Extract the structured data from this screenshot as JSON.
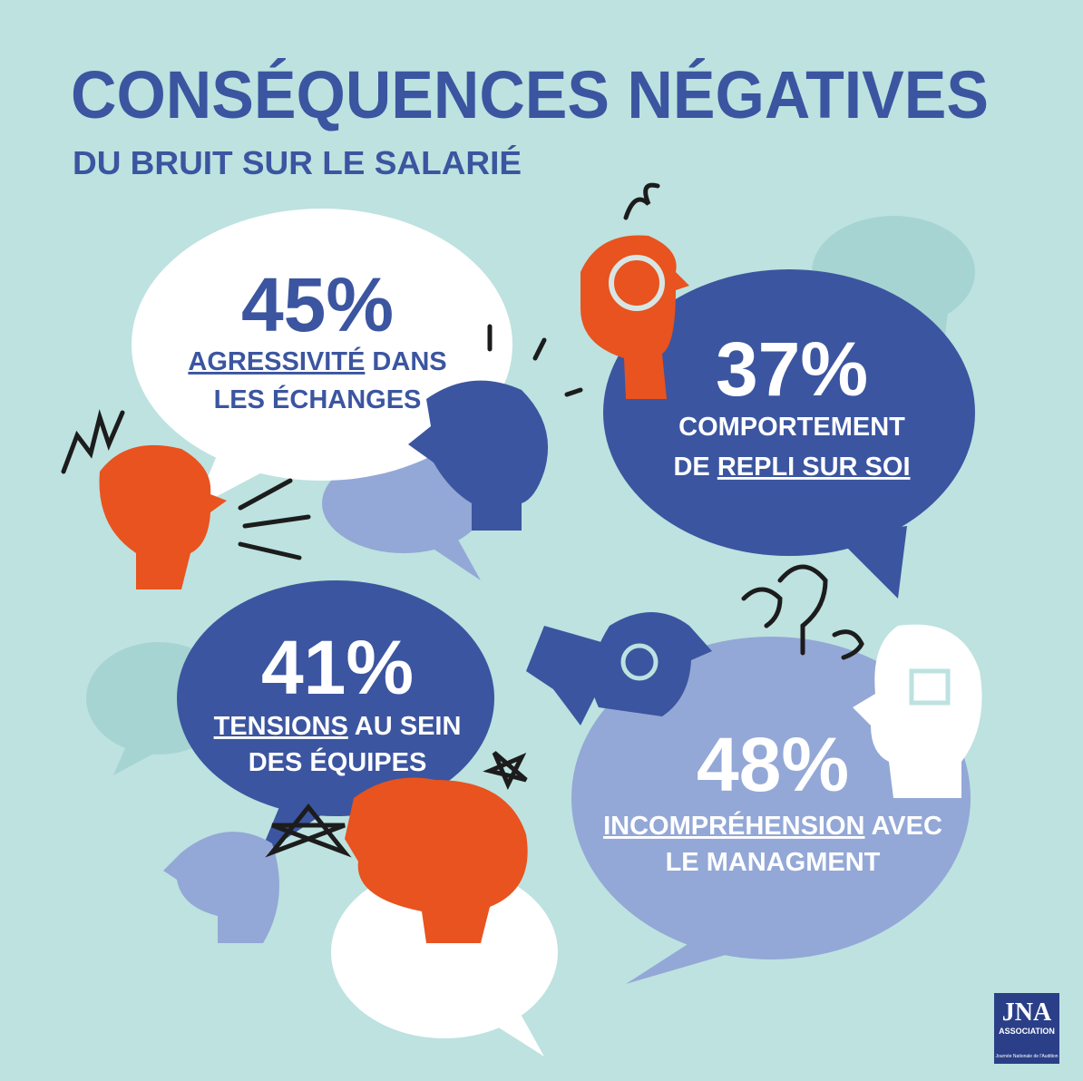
{
  "title": "CONSÉQUENCES NÉGATIVES",
  "subtitle": "DU BRUIT SUR LE SALARIÉ",
  "stats": [
    {
      "value": "45%",
      "lines": [
        [
          {
            "text": "AGRESSIVITÉ",
            "underline": true
          },
          {
            "text": " DANS"
          }
        ],
        [
          {
            "text": "LES ÉCHANGES"
          }
        ]
      ]
    },
    {
      "value": "37%",
      "lines": [
        [
          {
            "text": "COMPORTEMENT"
          }
        ],
        [
          {
            "text": "DE "
          },
          {
            "text": "REPLI SUR SOI",
            "underline": true
          }
        ]
      ]
    },
    {
      "value": "41%",
      "lines": [
        [
          {
            "text": "TENSIONS",
            "underline": true
          },
          {
            "text": " AU SEIN"
          }
        ],
        [
          {
            "text": "DES ÉQUIPES"
          }
        ]
      ]
    },
    {
      "value": "48%",
      "lines": [
        [
          {
            "text": "INCOMPRÉHENSION",
            "underline": true
          },
          {
            "text": " AVEC"
          }
        ],
        [
          {
            "text": "LE MANAGMENT"
          }
        ]
      ]
    }
  ],
  "logo": {
    "name": "JNA",
    "sub": "ASSOCIATION",
    "caption": "Journée Nationale de l'Audition"
  }
}
